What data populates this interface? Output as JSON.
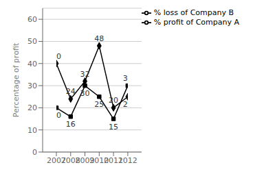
{
  "chart_data": {
    "type": "line",
    "x": [
      2007,
      2008,
      2009,
      2010,
      2011,
      2012
    ],
    "xlim": [
      2007,
      2012
    ],
    "xticks": [
      2007,
      2008,
      2009,
      2010,
      2011,
      2012
    ],
    "ylabel": "Percentage of profit",
    "ylim": [
      0,
      65
    ],
    "yticks": [
      0,
      10,
      20,
      30,
      40,
      50,
      60
    ],
    "grid": true,
    "legend": "upper right",
    "data_labels": true,
    "series": [
      {
        "name": "% profit of Company A",
        "color": "#000000",
        "marker": "diamond",
        "values": [
          40,
          24,
          32,
          48,
          20,
          25
        ]
      },
      {
        "name": "% loss of Company B",
        "color": "#000000",
        "marker": "square",
        "values": [
          20,
          16,
          30,
          25,
          15,
          30
        ]
      }
    ]
  }
}
